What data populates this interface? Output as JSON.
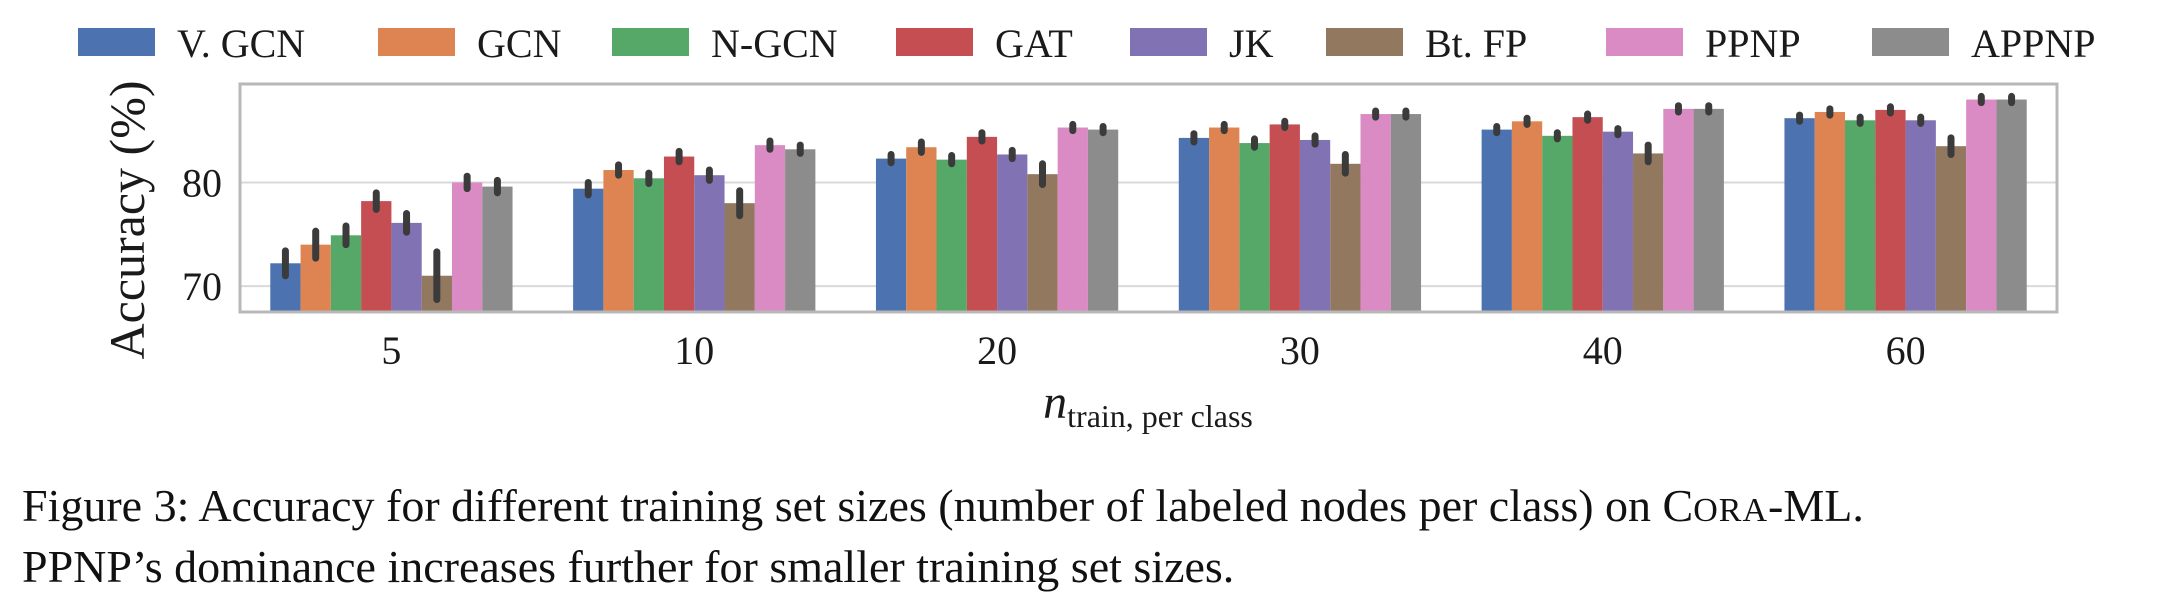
{
  "chart_data": {
    "type": "bar",
    "title": "",
    "xlabel_main": "n",
    "xlabel_sub": "train, per class",
    "ylabel": "Accuracy (%)",
    "ylim": [
      67.5,
      89.5
    ],
    "yticks": [
      70,
      80
    ],
    "grid": true,
    "legend_position": "top",
    "categories": [
      "5",
      "10",
      "20",
      "30",
      "40",
      "60"
    ],
    "series": [
      {
        "name": "V. GCN",
        "color": "#4c72b0",
        "values": [
          72.2,
          79.4,
          82.3,
          84.3,
          85.1,
          86.2
        ],
        "errors": [
          1.2,
          0.6,
          0.4,
          0.4,
          0.3,
          0.3
        ]
      },
      {
        "name": "GCN",
        "color": "#dd8452",
        "values": [
          74.0,
          81.2,
          83.4,
          85.3,
          85.9,
          86.8
        ],
        "errors": [
          1.3,
          0.5,
          0.5,
          0.3,
          0.3,
          0.3
        ]
      },
      {
        "name": "N-GCN",
        "color": "#55a868",
        "values": [
          74.9,
          80.4,
          82.2,
          83.8,
          84.5,
          86.0
        ],
        "errors": [
          0.9,
          0.5,
          0.4,
          0.4,
          0.3,
          0.3
        ]
      },
      {
        "name": "GAT",
        "color": "#c44e52",
        "values": [
          78.2,
          82.5,
          84.4,
          85.6,
          86.3,
          87.0
        ],
        "errors": [
          0.8,
          0.5,
          0.4,
          0.3,
          0.3,
          0.3
        ]
      },
      {
        "name": "JK",
        "color": "#8172b3",
        "values": [
          76.1,
          80.7,
          82.7,
          84.1,
          84.9,
          86.0
        ],
        "errors": [
          0.9,
          0.5,
          0.4,
          0.4,
          0.3,
          0.3
        ]
      },
      {
        "name": "Bt. FP",
        "color": "#937860",
        "values": [
          71.0,
          78.0,
          80.8,
          81.8,
          82.8,
          83.5
        ],
        "errors": [
          2.3,
          1.2,
          1.0,
          0.9,
          0.8,
          0.8
        ]
      },
      {
        "name": "PPNP",
        "color": "#da8bc3",
        "values": [
          80.0,
          83.6,
          85.3,
          86.6,
          87.1,
          88.0
        ],
        "errors": [
          0.6,
          0.4,
          0.3,
          0.3,
          0.3,
          0.3
        ]
      },
      {
        "name": "APPNP",
        "color": "#8c8c8c",
        "values": [
          79.6,
          83.2,
          85.1,
          86.6,
          87.1,
          88.0
        ],
        "errors": [
          0.6,
          0.4,
          0.3,
          0.3,
          0.3,
          0.3
        ]
      }
    ]
  },
  "caption": {
    "lead": "Figure 3: Accuracy for different training set sizes (number of labeled nodes per class) on C",
    "smallcaps": "ORA",
    "tail": "-ML.",
    "line2": "PPNP’s dominance increases further for smaller training set sizes."
  }
}
